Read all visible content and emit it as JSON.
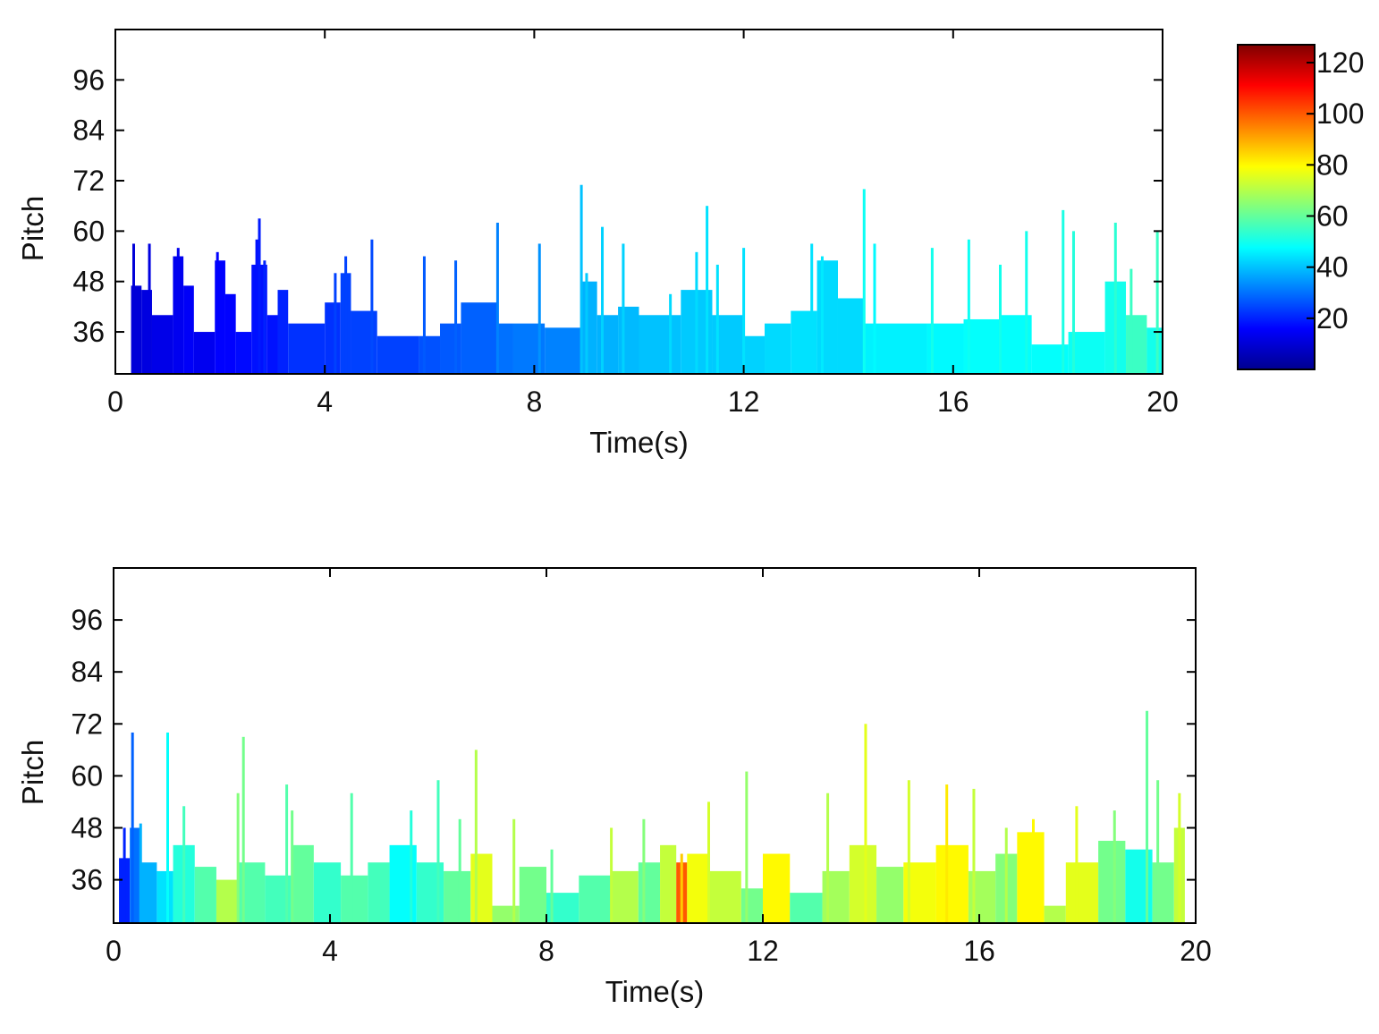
{
  "chart_data": [
    {
      "type": "heatmap",
      "panel": "top",
      "title": "",
      "xlabel": "Time(s)",
      "ylabel": "Pitch",
      "xlim": [
        0,
        20
      ],
      "ylim": [
        26,
        108
      ],
      "xticks": [
        "0",
        "4",
        "8",
        "12",
        "16",
        "20"
      ],
      "yticks": [
        "36",
        "48",
        "60",
        "72",
        "84",
        "96"
      ],
      "grid": false,
      "fill_bottom": 26,
      "segments": [
        [
          0.3,
          0.5,
          47,
          11
        ],
        [
          0.5,
          0.7,
          46,
          12
        ],
        [
          0.7,
          1.1,
          40,
          13
        ],
        [
          1.1,
          1.3,
          54,
          14
        ],
        [
          1.3,
          1.5,
          47,
          15
        ],
        [
          1.5,
          1.9,
          36,
          14
        ],
        [
          1.9,
          2.1,
          53,
          16
        ],
        [
          2.1,
          2.3,
          45,
          16
        ],
        [
          2.3,
          2.6,
          36,
          17
        ],
        [
          2.6,
          2.9,
          52,
          18
        ],
        [
          2.9,
          3.1,
          40,
          18
        ],
        [
          3.1,
          3.3,
          46,
          20
        ],
        [
          3.3,
          4.0,
          38,
          22
        ],
        [
          4.0,
          4.3,
          43,
          22
        ],
        [
          4.3,
          4.5,
          50,
          24
        ],
        [
          4.5,
          5.0,
          41,
          24
        ],
        [
          5.0,
          5.8,
          35,
          24
        ],
        [
          5.8,
          6.2,
          35,
          26
        ],
        [
          6.2,
          6.6,
          38,
          27
        ],
        [
          6.6,
          7.3,
          43,
          28
        ],
        [
          7.3,
          7.6,
          38,
          30
        ],
        [
          7.6,
          8.2,
          38,
          31
        ],
        [
          8.2,
          8.9,
          37,
          32
        ],
        [
          8.9,
          9.2,
          48,
          38
        ],
        [
          9.2,
          9.6,
          40,
          38
        ],
        [
          9.6,
          10.0,
          42,
          39
        ],
        [
          10.0,
          10.8,
          40,
          40
        ],
        [
          10.8,
          11.4,
          46,
          41
        ],
        [
          11.4,
          12.0,
          40,
          41
        ],
        [
          12.0,
          12.4,
          35,
          42
        ],
        [
          12.4,
          12.9,
          38,
          43
        ],
        [
          12.9,
          13.4,
          41,
          44
        ],
        [
          13.4,
          13.8,
          53,
          43
        ],
        [
          13.8,
          14.3,
          44,
          43
        ],
        [
          14.3,
          15.5,
          38,
          46
        ],
        [
          15.5,
          16.2,
          38,
          47
        ],
        [
          16.2,
          16.9,
          39,
          48
        ],
        [
          16.9,
          17.5,
          40,
          48
        ],
        [
          17.5,
          18.2,
          33,
          48
        ],
        [
          18.2,
          18.9,
          36,
          49
        ],
        [
          18.9,
          19.3,
          48,
          50
        ],
        [
          19.3,
          19.7,
          40,
          55
        ],
        [
          19.7,
          20.0,
          37,
          50
        ]
      ],
      "spikes": [
        [
          0.35,
          57,
          11
        ],
        [
          0.65,
          57,
          12
        ],
        [
          1.2,
          56,
          14
        ],
        [
          1.95,
          55,
          16
        ],
        [
          2.7,
          58,
          18
        ],
        [
          2.75,
          63,
          19
        ],
        [
          2.85,
          53,
          20
        ],
        [
          4.2,
          50,
          24
        ],
        [
          4.4,
          54,
          24
        ],
        [
          4.9,
          58,
          25
        ],
        [
          5.9,
          54,
          27
        ],
        [
          6.5,
          53,
          28
        ],
        [
          7.3,
          62,
          32
        ],
        [
          8.1,
          57,
          34
        ],
        [
          8.9,
          71,
          40
        ],
        [
          9.0,
          50,
          41
        ],
        [
          9.3,
          61,
          42
        ],
        [
          9.7,
          57,
          42
        ],
        [
          10.6,
          45,
          43
        ],
        [
          11.1,
          55,
          43
        ],
        [
          11.3,
          66,
          44
        ],
        [
          11.5,
          52,
          44
        ],
        [
          12.0,
          56,
          44
        ],
        [
          13.3,
          57,
          44
        ],
        [
          13.5,
          54,
          45
        ],
        [
          14.3,
          70,
          49
        ],
        [
          14.5,
          57,
          47
        ],
        [
          15.6,
          56,
          50
        ],
        [
          16.3,
          58,
          49
        ],
        [
          16.9,
          52,
          50
        ],
        [
          17.4,
          60,
          50
        ],
        [
          18.1,
          65,
          51
        ],
        [
          18.3,
          60,
          52
        ],
        [
          19.1,
          62,
          53
        ],
        [
          19.4,
          51,
          55
        ],
        [
          19.9,
          60,
          55
        ]
      ]
    },
    {
      "type": "heatmap",
      "panel": "bottom",
      "title": "",
      "xlabel": "Time(s)",
      "ylabel": "Pitch",
      "xlim": [
        0,
        20
      ],
      "ylim": [
        26,
        108
      ],
      "xticks": [
        "0",
        "4",
        "8",
        "12",
        "16",
        "20"
      ],
      "yticks": [
        "36",
        "48",
        "60",
        "72",
        "84",
        "96"
      ],
      "grid": false,
      "fill_bottom": 26,
      "segments": [
        [
          0.1,
          0.3,
          41,
          20
        ],
        [
          0.3,
          0.5,
          48,
          30
        ],
        [
          0.5,
          0.8,
          40,
          38
        ],
        [
          0.8,
          1.1,
          38,
          44
        ],
        [
          1.1,
          1.5,
          44,
          52
        ],
        [
          1.5,
          1.9,
          39,
          58
        ],
        [
          1.9,
          2.3,
          36,
          70
        ],
        [
          2.3,
          2.8,
          40,
          58
        ],
        [
          2.8,
          3.3,
          37,
          56
        ],
        [
          3.3,
          3.7,
          44,
          60
        ],
        [
          3.7,
          4.2,
          40,
          54
        ],
        [
          4.2,
          4.7,
          37,
          58
        ],
        [
          4.7,
          5.1,
          40,
          56
        ],
        [
          5.1,
          5.6,
          44,
          48
        ],
        [
          5.6,
          6.1,
          40,
          54
        ],
        [
          6.1,
          6.6,
          38,
          60
        ],
        [
          6.6,
          7.0,
          42,
          76
        ],
        [
          7.0,
          7.5,
          30,
          66
        ],
        [
          7.5,
          8.0,
          39,
          62
        ],
        [
          8.0,
          8.6,
          33,
          54
        ],
        [
          8.6,
          9.2,
          37,
          58
        ],
        [
          9.2,
          9.7,
          38,
          70
        ],
        [
          9.7,
          10.1,
          40,
          60
        ],
        [
          10.1,
          10.4,
          44,
          72
        ],
        [
          10.4,
          10.6,
          40,
          100
        ],
        [
          10.6,
          11.0,
          42,
          78
        ],
        [
          11.0,
          11.6,
          38,
          72
        ],
        [
          11.6,
          12.0,
          34,
          62
        ],
        [
          12.0,
          12.5,
          42,
          80
        ],
        [
          12.5,
          13.1,
          33,
          58
        ],
        [
          13.1,
          13.6,
          38,
          68
        ],
        [
          13.6,
          14.1,
          44,
          74
        ],
        [
          14.1,
          14.6,
          39,
          66
        ],
        [
          14.6,
          15.2,
          40,
          78
        ],
        [
          15.2,
          15.8,
          44,
          80
        ],
        [
          15.8,
          16.3,
          38,
          68
        ],
        [
          16.3,
          16.7,
          42,
          64
        ],
        [
          16.7,
          17.2,
          47,
          80
        ],
        [
          17.2,
          17.6,
          30,
          70
        ],
        [
          17.6,
          18.2,
          40,
          76
        ],
        [
          18.2,
          18.7,
          45,
          62
        ],
        [
          18.7,
          19.2,
          43,
          50
        ],
        [
          19.2,
          19.6,
          40,
          62
        ],
        [
          19.6,
          19.8,
          48,
          72
        ]
      ],
      "spikes": [
        [
          0.2,
          48,
          20
        ],
        [
          0.35,
          70,
          28
        ],
        [
          0.5,
          49,
          38
        ],
        [
          1.0,
          70,
          48
        ],
        [
          1.3,
          53,
          56
        ],
        [
          2.3,
          56,
          64
        ],
        [
          2.4,
          69,
          62
        ],
        [
          3.2,
          58,
          58
        ],
        [
          3.3,
          52,
          62
        ],
        [
          4.4,
          56,
          58
        ],
        [
          5.5,
          52,
          52
        ],
        [
          6.0,
          59,
          56
        ],
        [
          6.4,
          50,
          60
        ],
        [
          6.7,
          66,
          70
        ],
        [
          7.4,
          50,
          70
        ],
        [
          8.1,
          43,
          60
        ],
        [
          9.2,
          48,
          72
        ],
        [
          9.8,
          50,
          64
        ],
        [
          10.5,
          42,
          86
        ],
        [
          11.0,
          54,
          74
        ],
        [
          11.7,
          61,
          66
        ],
        [
          12.3,
          42,
          80
        ],
        [
          13.2,
          56,
          70
        ],
        [
          13.9,
          72,
          76
        ],
        [
          14.7,
          59,
          74
        ],
        [
          15.4,
          58,
          82
        ],
        [
          15.9,
          57,
          72
        ],
        [
          16.5,
          48,
          70
        ],
        [
          17.0,
          50,
          80
        ],
        [
          17.8,
          53,
          76
        ],
        [
          18.5,
          52,
          64
        ],
        [
          19.1,
          75,
          60
        ],
        [
          19.3,
          59,
          62
        ],
        [
          19.7,
          56,
          74
        ]
      ]
    }
  ],
  "colorbar": {
    "ticks": [
      "20",
      "40",
      "60",
      "80",
      "100",
      "120"
    ],
    "range": [
      0,
      127
    ],
    "colormap": "jet"
  }
}
